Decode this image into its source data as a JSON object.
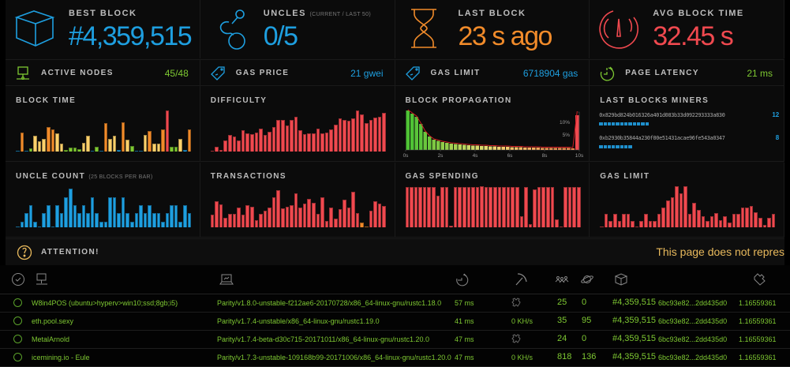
{
  "colors": {
    "blue": "#1e9fe0",
    "orange": "#f18b2a",
    "red": "#f0494f",
    "green": "#7ec832",
    "yellow": "#ffd16b",
    "attention": "#e8b95c"
  },
  "big_stats": [
    {
      "label": "BEST BLOCK",
      "sub": "",
      "value": "#4,359,515",
      "icon": "cube-icon",
      "color": "#1e9fe0"
    },
    {
      "label": "UNCLES",
      "sub": "(CURRENT / LAST 50)",
      "value": "0/5",
      "icon": "uncles-link-icon",
      "color": "#1e9fe0"
    },
    {
      "label": "LAST BLOCK",
      "sub": "",
      "value": "23 s ago",
      "icon": "hourglass-icon",
      "color": "#f18b2a"
    },
    {
      "label": "AVG BLOCK TIME",
      "sub": "",
      "value": "32.45 s",
      "icon": "gauge-icon",
      "color": "#f0494f"
    }
  ],
  "small_stats": [
    {
      "label": "ACTIVE NODES",
      "value": "45/48",
      "icon": "network-node-icon",
      "color": "#7ec832"
    },
    {
      "label": "GAS PRICE",
      "value": "21 gwei",
      "icon": "price-tag-icon",
      "color": "#1e9fe0"
    },
    {
      "label": "GAS LIMIT",
      "value": "6718904 gas",
      "icon": "price-tag-icon",
      "color": "#1e9fe0"
    },
    {
      "label": "PAGE LATENCY",
      "value": "21 ms",
      "icon": "stopwatch-icon",
      "color": "#7ec832"
    }
  ],
  "panels": {
    "block_time": {
      "title": "BLOCK TIME"
    },
    "difficulty": {
      "title": "DIFFICULTY"
    },
    "block_propagation": {
      "title": "BLOCK PROPAGATION",
      "pct10": "10%",
      "pct5": "5%",
      "xticks": [
        "0s",
        "2s",
        "4s",
        "6s",
        "8s",
        "10s"
      ]
    },
    "last_blocks_miners": {
      "title": "LAST BLOCKS MINERS",
      "miners": [
        {
          "address": "0x829bd824b016326a401d083b33d092293333a830",
          "count": "12",
          "blocks": 12
        },
        {
          "address": "0xb2930b35844a230f00e51431acae96fe543a0347",
          "count": "8",
          "blocks": 8
        }
      ]
    },
    "uncle_count": {
      "title": "UNCLE COUNT",
      "sub": "(25 BLOCKS PER BAR)"
    },
    "transactions": {
      "title": "TRANSACTIONS"
    },
    "gas_spending": {
      "title": "GAS SPENDING"
    },
    "gas_limit": {
      "title": "GAS LIMIT"
    }
  },
  "chart_data": [
    {
      "type": "bar",
      "title": "BLOCK TIME",
      "values": [
        2,
        47,
        1,
        7,
        38,
        25,
        31,
        59,
        53,
        45,
        20,
        4,
        10,
        10,
        5,
        22,
        38,
        1,
        11,
        2,
        69,
        30,
        38,
        4,
        71,
        28,
        14,
        1,
        1,
        41,
        50,
        20,
        20,
        53,
        100,
        11,
        11,
        30,
        3,
        53
      ],
      "colors": [
        "b",
        "o",
        "b",
        "g",
        "y",
        "y",
        "y",
        "o",
        "o",
        "y",
        "y",
        "g",
        "g",
        "g",
        "g",
        "y",
        "y",
        "b",
        "g",
        "b",
        "o",
        "y",
        "y",
        "b",
        "o",
        "y",
        "g",
        "b",
        "b",
        "y",
        "o",
        "y",
        "y",
        "o",
        "r",
        "g",
        "g",
        "y",
        "b",
        "o"
      ]
    },
    {
      "type": "bar",
      "title": "DIFFICULTY",
      "values": [
        2,
        11,
        3,
        26,
        40,
        36,
        26,
        52,
        45,
        43,
        47,
        56,
        41,
        49,
        60,
        77,
        76,
        63,
        76,
        85,
        52,
        43,
        45,
        44,
        56,
        44,
        47,
        53,
        65,
        80,
        77,
        75,
        81,
        100,
        91,
        70,
        77,
        83,
        84,
        95
      ]
    },
    {
      "type": "bar",
      "title": "UNCLE COUNT",
      "values": [
        1,
        14,
        34,
        54,
        14,
        1,
        34,
        54,
        1,
        54,
        34,
        74,
        95,
        54,
        34,
        54,
        34,
        74,
        34,
        14,
        14,
        74,
        74,
        34,
        74,
        34,
        14,
        34,
        54,
        34,
        54,
        34,
        34,
        14,
        34,
        54,
        54,
        14,
        54,
        34
      ]
    },
    {
      "type": "bar",
      "title": "TRANSACTIONS",
      "values": [
        30,
        63,
        55,
        23,
        33,
        33,
        48,
        31,
        53,
        50,
        17,
        33,
        40,
        48,
        73,
        91,
        47,
        50,
        53,
        82,
        49,
        58,
        69,
        59,
        33,
        74,
        15,
        48,
        21,
        44,
        68,
        48,
        87,
        35,
        12,
        2,
        40,
        63,
        58,
        52
      ],
      "colors": [
        "r",
        "r",
        "r",
        "r",
        "r",
        "r",
        "r",
        "r",
        "r",
        "r",
        "r",
        "r",
        "r",
        "r",
        "r",
        "r",
        "r",
        "r",
        "r",
        "r",
        "r",
        "r",
        "r",
        "r",
        "r",
        "r",
        "r",
        "r",
        "r",
        "r",
        "r",
        "r",
        "r",
        "r",
        "o",
        "o",
        "r",
        "r",
        "r",
        "r"
      ]
    },
    {
      "type": "bar",
      "title": "GAS SPENDING",
      "values": [
        98,
        98,
        98,
        98,
        98,
        98,
        98,
        76,
        98,
        98,
        4,
        98,
        98,
        98,
        98,
        98,
        98,
        100,
        98,
        98,
        98,
        98,
        98,
        98,
        98,
        98,
        27,
        98,
        7,
        93,
        98,
        98,
        98,
        98,
        20,
        1,
        98,
        98,
        98,
        98
      ]
    },
    {
      "type": "bar",
      "title": "GAS LIMIT",
      "values": [
        1,
        32,
        15,
        32,
        15,
        32,
        32,
        15,
        1,
        15,
        32,
        15,
        15,
        32,
        48,
        65,
        74,
        100,
        83,
        100,
        32,
        60,
        43,
        26,
        15,
        26,
        35,
        17,
        26,
        11,
        32,
        32,
        48,
        48,
        52,
        37,
        23,
        6,
        23,
        32
      ]
    },
    {
      "type": "bar",
      "title": "BLOCK PROPAGATION",
      "categories": [
        "0s",
        "2s",
        "4s",
        "6s",
        "8s",
        "10s"
      ],
      "values": [
        100,
        92,
        84,
        66,
        46,
        34,
        26,
        23,
        20,
        18,
        16,
        15,
        14,
        13,
        12,
        11,
        11,
        10,
        10,
        9,
        9,
        8,
        8,
        8,
        7,
        7,
        7,
        6,
        6,
        6,
        6,
        5,
        5,
        5,
        5,
        5,
        5,
        5,
        4,
        88
      ]
    }
  ],
  "attention": {
    "label": "ATTENTION!",
    "message": "This page does not repres"
  },
  "table": {
    "rows": [
      {
        "name": "W8in4POS (ubuntu>hyperv>win10;ssd;8gb;i5)",
        "client": "Parity/v1.8.0-unstable-f212ae6-20170728/x86_64-linux-gnu/rustc1.18.0",
        "latency": "57 ms",
        "hashrate": "",
        "peers": "25",
        "pending": "0",
        "block": "#4,359,515",
        "block_hash": "6bc93e82...2dd435d0",
        "difficulty": "1.16559361"
      },
      {
        "name": "eth.pool.sexy",
        "client": "Parity/v1.7.4-unstable/x86_64-linux-gnu/rustc1.19.0",
        "latency": "41 ms",
        "hashrate": "0 KH/s",
        "peers": "35",
        "pending": "95",
        "block": "#4,359,515",
        "block_hash": "6bc93e82...2dd435d0",
        "difficulty": "1.16559361"
      },
      {
        "name": "MetalArnold",
        "client": "Parity/v1.7.4-beta-d30c715-20171011/x86_64-linux-gnu/rustc1.20.0",
        "latency": "47 ms",
        "hashrate": "",
        "peers": "24",
        "pending": "0",
        "block": "#4,359,515",
        "block_hash": "6bc93e82...2dd435d0",
        "difficulty": "1.16559361"
      },
      {
        "name": "icemining.io - Eule",
        "client": "Parity/v1.7.3-unstable-109168b99-20171006/x86_64-linux-gnu/rustc1.20.0",
        "latency": "47 ms",
        "hashrate": "0 KH/s",
        "peers": "818",
        "pending": "136",
        "block": "#4,359,515",
        "block_hash": "6bc93e82...2dd435d0",
        "difficulty": "1.16559361"
      }
    ]
  }
}
